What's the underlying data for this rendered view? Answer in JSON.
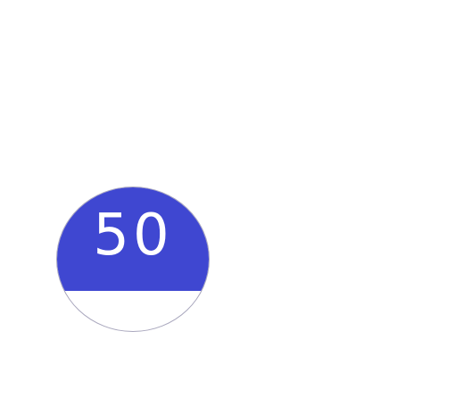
{
  "gauge": {
    "value_label": "50",
    "fill_fraction": 0.72,
    "fill_color": "#3f47d1",
    "empty_color": "#ffffff",
    "border_color": "#a9a7bd",
    "text_color": "#ffffff"
  }
}
